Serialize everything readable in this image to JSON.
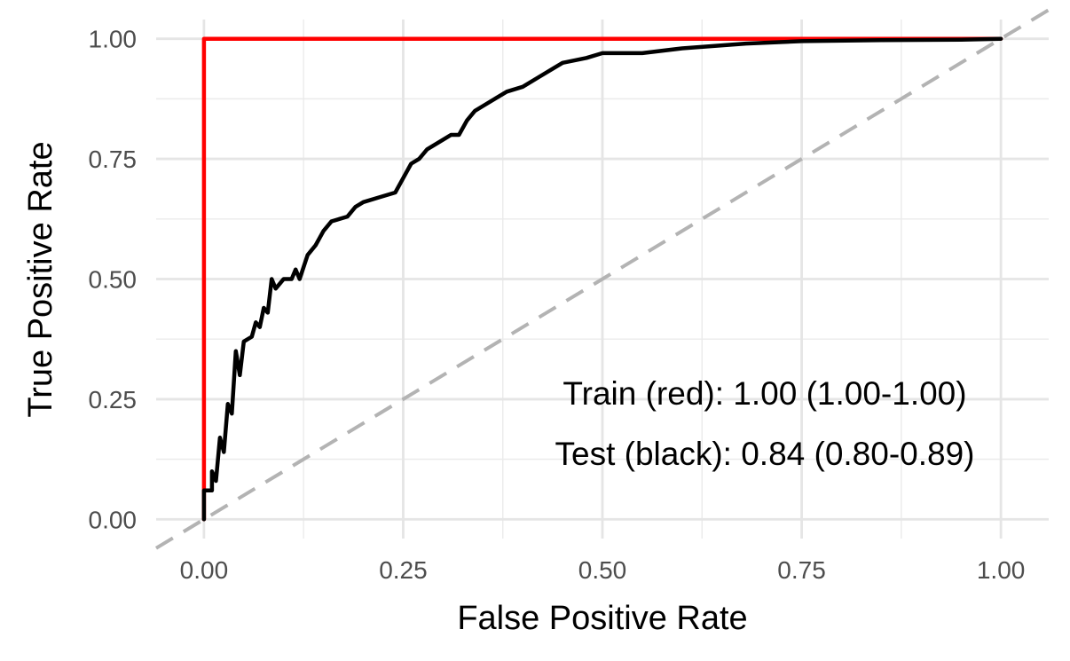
{
  "chart_data": {
    "type": "line",
    "xlabel": "False Positive Rate",
    "ylabel": "True Positive Rate",
    "xlim": [
      -0.06,
      1.06
    ],
    "ylim": [
      -0.04,
      1.04
    ],
    "x_ticks": [
      "0.00",
      "0.25",
      "0.50",
      "0.75",
      "1.00"
    ],
    "y_ticks": [
      "0.00",
      "0.25",
      "0.50",
      "0.75",
      "1.00"
    ],
    "grid": true,
    "annotations": [
      "Train (red): 1.00 (1.00-1.00)",
      "Test (black): 0.84 (0.80-0.89)"
    ],
    "reference_line": {
      "points": [
        [
          -0.06,
          -0.06
        ],
        [
          1.06,
          1.06
        ]
      ],
      "color": "#b3b3b3",
      "style": "dashed"
    },
    "series": [
      {
        "color": "#ff0000",
        "points": [
          [
            0.0,
            0.0
          ],
          [
            0.0,
            1.0
          ],
          [
            0.01,
            1.0
          ],
          [
            1.0,
            1.0
          ]
        ]
      },
      {
        "color": "#000000",
        "points": [
          [
            0.0,
            0.0
          ],
          [
            0.0,
            0.06
          ],
          [
            0.01,
            0.06
          ],
          [
            0.01,
            0.1
          ],
          [
            0.015,
            0.08
          ],
          [
            0.02,
            0.17
          ],
          [
            0.025,
            0.14
          ],
          [
            0.03,
            0.24
          ],
          [
            0.035,
            0.22
          ],
          [
            0.04,
            0.35
          ],
          [
            0.045,
            0.3
          ],
          [
            0.05,
            0.37
          ],
          [
            0.06,
            0.38
          ],
          [
            0.065,
            0.41
          ],
          [
            0.07,
            0.4
          ],
          [
            0.075,
            0.44
          ],
          [
            0.08,
            0.43
          ],
          [
            0.085,
            0.5
          ],
          [
            0.09,
            0.48
          ],
          [
            0.1,
            0.5
          ],
          [
            0.11,
            0.5
          ],
          [
            0.115,
            0.52
          ],
          [
            0.12,
            0.5
          ],
          [
            0.13,
            0.55
          ],
          [
            0.14,
            0.57
          ],
          [
            0.15,
            0.6
          ],
          [
            0.16,
            0.62
          ],
          [
            0.18,
            0.63
          ],
          [
            0.19,
            0.65
          ],
          [
            0.2,
            0.66
          ],
          [
            0.22,
            0.67
          ],
          [
            0.24,
            0.68
          ],
          [
            0.25,
            0.71
          ],
          [
            0.26,
            0.74
          ],
          [
            0.27,
            0.75
          ],
          [
            0.28,
            0.77
          ],
          [
            0.3,
            0.79
          ],
          [
            0.31,
            0.8
          ],
          [
            0.32,
            0.8
          ],
          [
            0.33,
            0.83
          ],
          [
            0.34,
            0.85
          ],
          [
            0.35,
            0.86
          ],
          [
            0.37,
            0.88
          ],
          [
            0.38,
            0.89
          ],
          [
            0.4,
            0.9
          ],
          [
            0.42,
            0.92
          ],
          [
            0.44,
            0.94
          ],
          [
            0.45,
            0.95
          ],
          [
            0.48,
            0.96
          ],
          [
            0.5,
            0.97
          ],
          [
            0.55,
            0.97
          ],
          [
            0.6,
            0.98
          ],
          [
            0.68,
            0.99
          ],
          [
            0.75,
            0.995
          ],
          [
            0.85,
            0.997
          ],
          [
            0.95,
            0.998
          ],
          [
            1.0,
            1.0
          ]
        ]
      }
    ]
  }
}
